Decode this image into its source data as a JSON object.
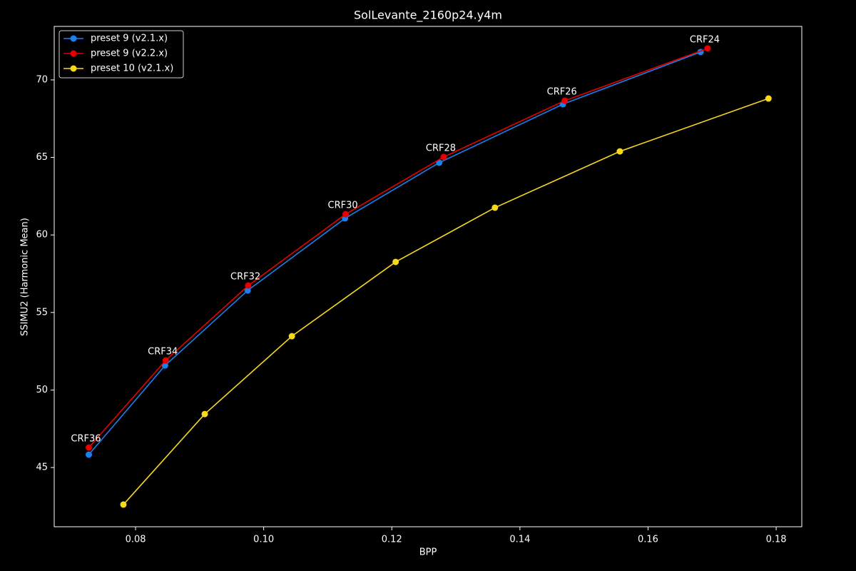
{
  "chart_data": {
    "type": "line",
    "title": "SolLevante_2160p24.y4m",
    "x_label": "BPP",
    "y_label": "SSIMU2 (Harmonic Mean)",
    "xlim": [
      0.0673,
      0.184
    ],
    "ylim": [
      41.18,
      73.45
    ],
    "xticks": [
      {
        "value": 0.08,
        "label": "0.08"
      },
      {
        "value": 0.1,
        "label": "0.10"
      },
      {
        "value": 0.12,
        "label": "0.12"
      },
      {
        "value": 0.14,
        "label": "0.14"
      },
      {
        "value": 0.16,
        "label": "0.16"
      },
      {
        "value": 0.18,
        "label": "0.18"
      }
    ],
    "yticks": [
      45,
      50,
      55,
      60,
      65,
      70
    ],
    "grid": false,
    "legend": "upper-left",
    "series": [
      {
        "name": "preset 9 (v2.1.x)",
        "color": "#1a80f0",
        "x": [
          0.0727,
          0.0846,
          0.0975,
          0.1127,
          0.1274,
          0.1467,
          0.1682
        ],
        "values": [
          45.83,
          51.58,
          56.42,
          61.07,
          64.66,
          68.43,
          71.8
        ]
      },
      {
        "name": "preset 9 (v2.2.x)",
        "color": "#e80000",
        "x": [
          0.0727,
          0.0847,
          0.0976,
          0.1128,
          0.1281,
          0.147,
          0.1693
        ],
        "values": [
          46.29,
          51.91,
          56.74,
          61.34,
          65.03,
          68.66,
          72.03
        ],
        "point_labels": [
          "CRF36",
          "CRF34",
          "CRF32",
          "CRF30",
          "CRF28",
          "CRF26",
          "CRF24"
        ]
      },
      {
        "name": "preset 10 (v2.1.x)",
        "color": "#f8d81c",
        "x": [
          0.0781,
          0.0908,
          0.1044,
          0.1206,
          0.1361,
          0.1556,
          0.1788
        ],
        "values": [
          42.61,
          48.45,
          53.47,
          58.26,
          61.76,
          65.39,
          68.8
        ]
      }
    ]
  }
}
